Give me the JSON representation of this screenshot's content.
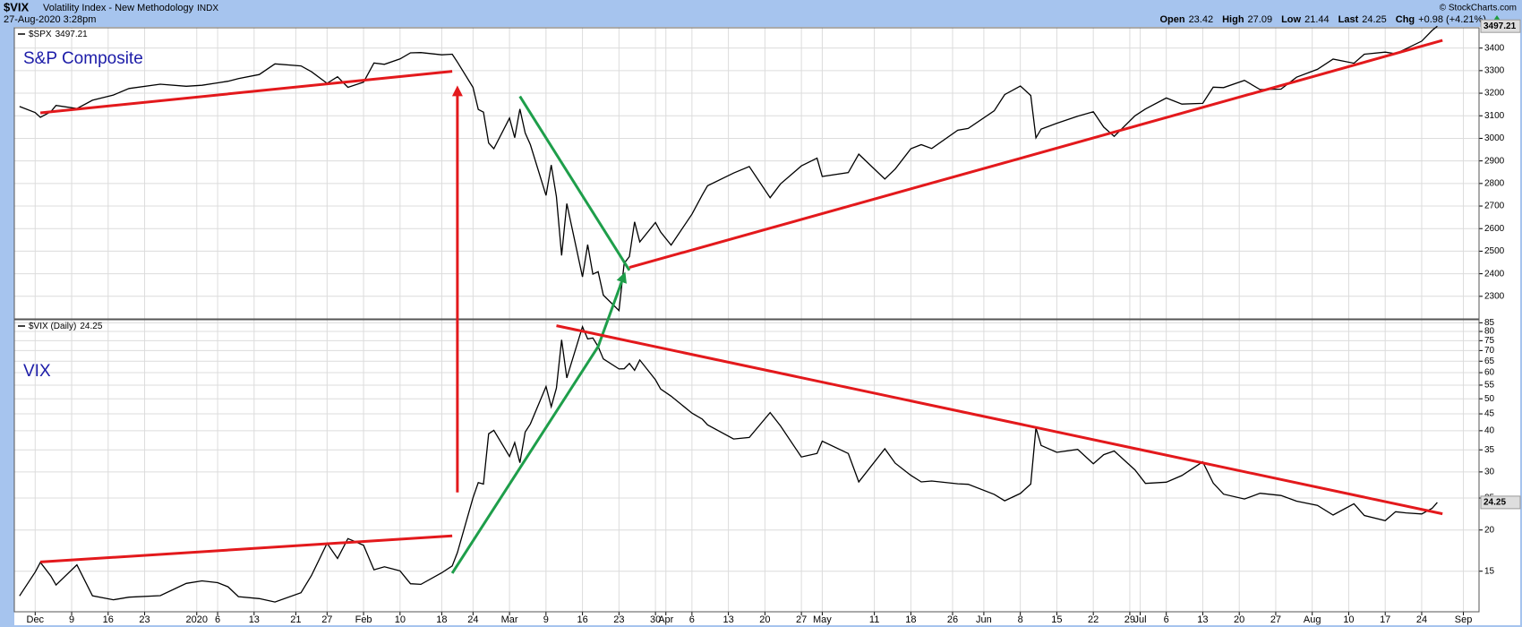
{
  "header": {
    "symbol": "$VIX",
    "name": "Volatility Index - New Methodology",
    "exchange": "INDX",
    "timestamp": "27-Aug-2020 3:28pm",
    "copyright": "© StockCharts.com",
    "quote": [
      {
        "label": "Open",
        "value": 23.42
      },
      {
        "label": "High",
        "value": 27.09
      },
      {
        "label": "Low",
        "value": 21.44
      },
      {
        "label": "Last",
        "value": 24.25
      },
      {
        "label": "Chg",
        "value": "+0.98 (+4.21%)"
      }
    ]
  },
  "chart_data": [
    {
      "type": "line",
      "title": "S&P Composite",
      "title_color": "#1c1ca8",
      "x": [
        "2019-11-29",
        "2019-12-02",
        "2019-12-03",
        "2019-12-05",
        "2019-12-06",
        "2019-12-10",
        "2019-12-13",
        "2019-12-17",
        "2019-12-20",
        "2019-12-26",
        "2019-12-31",
        "2020-01-03",
        "2020-01-06",
        "2020-01-08",
        "2020-01-10",
        "2020-01-14",
        "2020-01-17",
        "2020-01-22",
        "2020-01-24",
        "2020-01-27",
        "2020-01-29",
        "2020-01-31",
        "2020-02-03",
        "2020-02-05",
        "2020-02-07",
        "2020-02-10",
        "2020-02-12",
        "2020-02-14",
        "2020-02-18",
        "2020-02-20",
        "2020-02-21",
        "2020-02-24",
        "2020-02-25",
        "2020-02-26",
        "2020-02-27",
        "2020-02-28",
        "2020-03-02",
        "2020-03-03",
        "2020-03-04",
        "2020-03-05",
        "2020-03-06",
        "2020-03-09",
        "2020-03-10",
        "2020-03-11",
        "2020-03-12",
        "2020-03-13",
        "2020-03-16",
        "2020-03-17",
        "2020-03-18",
        "2020-03-19",
        "2020-03-20",
        "2020-03-23",
        "2020-03-24",
        "2020-03-25",
        "2020-03-26",
        "2020-03-27",
        "2020-03-30",
        "2020-03-31",
        "2020-04-02",
        "2020-04-06",
        "2020-04-08",
        "2020-04-09",
        "2020-04-14",
        "2020-04-17",
        "2020-04-21",
        "2020-04-23",
        "2020-04-27",
        "2020-04-30",
        "2020-05-01",
        "2020-05-06",
        "2020-05-08",
        "2020-05-13",
        "2020-05-15",
        "2020-05-18",
        "2020-05-20",
        "2020-05-22",
        "2020-05-27",
        "2020-05-29",
        "2020-06-03",
        "2020-06-05",
        "2020-06-08",
        "2020-06-10",
        "2020-06-11",
        "2020-06-12",
        "2020-06-15",
        "2020-06-19",
        "2020-06-22",
        "2020-06-24",
        "2020-06-26",
        "2020-06-30",
        "2020-07-02",
        "2020-07-06",
        "2020-07-09",
        "2020-07-13",
        "2020-07-15",
        "2020-07-17",
        "2020-07-21",
        "2020-07-24",
        "2020-07-28",
        "2020-07-31",
        "2020-08-04",
        "2020-08-07",
        "2020-08-11",
        "2020-08-13",
        "2020-08-17",
        "2020-08-19",
        "2020-08-21",
        "2020-08-24",
        "2020-08-26",
        "2020-08-27"
      ],
      "series": [
        {
          "name": "$SPX",
          "color": "#000000",
          "values": [
            3141,
            3114,
            3093,
            3118,
            3146,
            3132,
            3169,
            3192,
            3221,
            3240,
            3231,
            3235,
            3246,
            3253,
            3265,
            3283,
            3330,
            3321,
            3295,
            3244,
            3273,
            3226,
            3249,
            3334,
            3328,
            3352,
            3379,
            3380,
            3370,
            3373,
            3338,
            3226,
            3128,
            3116,
            2979,
            2954,
            3090,
            3003,
            3130,
            3024,
            2972,
            2747,
            2882,
            2741,
            2481,
            2711,
            2386,
            2529,
            2398,
            2409,
            2305,
            2237,
            2447,
            2476,
            2630,
            2541,
            2627,
            2585,
            2527,
            2664,
            2750,
            2790,
            2846,
            2875,
            2737,
            2798,
            2878,
            2912,
            2831,
            2848,
            2930,
            2820,
            2864,
            2954,
            2972,
            2955,
            3036,
            3044,
            3122,
            3194,
            3232,
            3190,
            3002,
            3041,
            3067,
            3098,
            3118,
            3050,
            3009,
            3100,
            3130,
            3179,
            3152,
            3155,
            3227,
            3225,
            3257,
            3216,
            3218,
            3271,
            3306,
            3351,
            3333,
            3373,
            3382,
            3375,
            3397,
            3431,
            3478,
            3497.21
          ]
        }
      ],
      "xlim": [
        "2019-11-28",
        "2020-09-04"
      ],
      "ylim": [
        2200,
        3490
      ],
      "yticks": [
        2300,
        2400,
        2500,
        2600,
        2700,
        2800,
        2900,
        3000,
        3100,
        3200,
        3300,
        3400
      ],
      "log": false,
      "grid": true
    },
    {
      "type": "line",
      "title": "VIX",
      "title_color": "#1c1ca8",
      "x": [
        "2019-11-29",
        "2019-12-02",
        "2019-12-03",
        "2019-12-05",
        "2019-12-06",
        "2019-12-10",
        "2019-12-13",
        "2019-12-17",
        "2019-12-20",
        "2019-12-26",
        "2019-12-31",
        "2020-01-03",
        "2020-01-06",
        "2020-01-08",
        "2020-01-10",
        "2020-01-14",
        "2020-01-17",
        "2020-01-22",
        "2020-01-24",
        "2020-01-27",
        "2020-01-29",
        "2020-01-31",
        "2020-02-03",
        "2020-02-05",
        "2020-02-07",
        "2020-02-10",
        "2020-02-12",
        "2020-02-14",
        "2020-02-18",
        "2020-02-20",
        "2020-02-21",
        "2020-02-24",
        "2020-02-25",
        "2020-02-26",
        "2020-02-27",
        "2020-02-28",
        "2020-03-02",
        "2020-03-03",
        "2020-03-04",
        "2020-03-05",
        "2020-03-06",
        "2020-03-09",
        "2020-03-10",
        "2020-03-11",
        "2020-03-12",
        "2020-03-13",
        "2020-03-16",
        "2020-03-17",
        "2020-03-18",
        "2020-03-19",
        "2020-03-20",
        "2020-03-23",
        "2020-03-24",
        "2020-03-25",
        "2020-03-26",
        "2020-03-27",
        "2020-03-30",
        "2020-03-31",
        "2020-04-02",
        "2020-04-06",
        "2020-04-08",
        "2020-04-09",
        "2020-04-14",
        "2020-04-17",
        "2020-04-21",
        "2020-04-23",
        "2020-04-27",
        "2020-04-30",
        "2020-05-01",
        "2020-05-06",
        "2020-05-08",
        "2020-05-13",
        "2020-05-15",
        "2020-05-18",
        "2020-05-20",
        "2020-05-22",
        "2020-05-27",
        "2020-05-29",
        "2020-06-03",
        "2020-06-05",
        "2020-06-08",
        "2020-06-10",
        "2020-06-11",
        "2020-06-12",
        "2020-06-15",
        "2020-06-19",
        "2020-06-22",
        "2020-06-24",
        "2020-06-26",
        "2020-06-30",
        "2020-07-02",
        "2020-07-06",
        "2020-07-09",
        "2020-07-13",
        "2020-07-15",
        "2020-07-17",
        "2020-07-21",
        "2020-07-24",
        "2020-07-28",
        "2020-07-31",
        "2020-08-04",
        "2020-08-07",
        "2020-08-11",
        "2020-08-13",
        "2020-08-17",
        "2020-08-19",
        "2020-08-21",
        "2020-08-24",
        "2020-08-26",
        "2020-08-27"
      ],
      "series": [
        {
          "name": "$VIX (Daily)",
          "color": "#000000",
          "values": [
            12.62,
            14.91,
            15.96,
            14.5,
            13.62,
            15.68,
            12.63,
            12.29,
            12.51,
            12.65,
            13.78,
            14.02,
            13.85,
            13.45,
            12.56,
            12.39,
            12.1,
            12.91,
            14.56,
            18.23,
            16.39,
            18.84,
            17.97,
            15.15,
            15.47,
            15.04,
            13.74,
            13.68,
            14.83,
            15.56,
            17.08,
            25.03,
            27.85,
            27.56,
            39.16,
            40.11,
            33.42,
            36.82,
            31.99,
            39.62,
            41.94,
            54.46,
            47.3,
            53.9,
            75.47,
            57.83,
            82.69,
            75.91,
            76.45,
            72.0,
            66.04,
            61.59,
            61.67,
            63.95,
            61.0,
            65.54,
            57.08,
            53.54,
            50.91,
            45.24,
            43.35,
            41.67,
            37.76,
            38.15,
            45.41,
            41.38,
            33.29,
            34.15,
            37.19,
            34.12,
            27.98,
            35.28,
            31.89,
            29.3,
            27.99,
            28.16,
            27.62,
            27.51,
            25.66,
            24.52,
            25.81,
            27.57,
            40.79,
            36.09,
            34.4,
            35.12,
            31.77,
            33.84,
            34.73,
            30.43,
            27.68,
            27.94,
            29.26,
            32.19,
            27.76,
            25.68,
            24.84,
            25.84,
            25.44,
            24.46,
            23.76,
            22.21,
            24.03,
            22.13,
            21.35,
            22.72,
            22.54,
            22.37,
            23.27,
            24.25
          ]
        }
      ],
      "xlim": [
        "2019-11-28",
        "2020-09-04"
      ],
      "ylim": [
        11.3,
        86.8
      ],
      "yticks": [
        15,
        20,
        25,
        30,
        35,
        40,
        45,
        50,
        55,
        60,
        65,
        70,
        75,
        80,
        85
      ],
      "log": true,
      "grid": true,
      "xticks": [
        {
          "value": "2019-12-02",
          "label": "Dec"
        },
        {
          "value": "2019-12-09",
          "label": "9"
        },
        {
          "value": "2019-12-16",
          "label": "16"
        },
        {
          "value": "2019-12-23",
          "label": "23"
        },
        {
          "value": "2020-01-02",
          "label": "2020"
        },
        {
          "value": "2020-01-06",
          "label": "6"
        },
        {
          "value": "2020-01-13",
          "label": "13"
        },
        {
          "value": "2020-01-21",
          "label": "21"
        },
        {
          "value": "2020-01-27",
          "label": "27"
        },
        {
          "value": "2020-02-03",
          "label": "Feb"
        },
        {
          "value": "2020-02-10",
          "label": "10"
        },
        {
          "value": "2020-02-18",
          "label": "18"
        },
        {
          "value": "2020-02-24",
          "label": "24"
        },
        {
          "value": "2020-03-02",
          "label": "Mar"
        },
        {
          "value": "2020-03-09",
          "label": "9"
        },
        {
          "value": "2020-03-16",
          "label": "16"
        },
        {
          "value": "2020-03-23",
          "label": "23"
        },
        {
          "value": "2020-03-30",
          "label": "30"
        },
        {
          "value": "2020-04-01",
          "label": "Apr"
        },
        {
          "value": "2020-04-06",
          "label": "6"
        },
        {
          "value": "2020-04-13",
          "label": "13"
        },
        {
          "value": "2020-04-20",
          "label": "20"
        },
        {
          "value": "2020-04-27",
          "label": "27"
        },
        {
          "value": "2020-05-01",
          "label": "May"
        },
        {
          "value": "2020-05-11",
          "label": "11"
        },
        {
          "value": "2020-05-18",
          "label": "18"
        },
        {
          "value": "2020-05-26",
          "label": "26"
        },
        {
          "value": "2020-06-01",
          "label": "Jun"
        },
        {
          "value": "2020-06-08",
          "label": "8"
        },
        {
          "value": "2020-06-15",
          "label": "15"
        },
        {
          "value": "2020-06-22",
          "label": "22"
        },
        {
          "value": "2020-06-29",
          "label": "29"
        },
        {
          "value": "2020-07-01",
          "label": "Jul"
        },
        {
          "value": "2020-07-06",
          "label": "6"
        },
        {
          "value": "2020-07-13",
          "label": "13"
        },
        {
          "value": "2020-07-20",
          "label": "20"
        },
        {
          "value": "2020-07-27",
          "label": "27"
        },
        {
          "value": "2020-08-03",
          "label": "Aug"
        },
        {
          "value": "2020-08-10",
          "label": "10"
        },
        {
          "value": "2020-08-17",
          "label": "17"
        },
        {
          "value": "2020-08-24",
          "label": "24"
        },
        {
          "value": "2020-09-01",
          "label": "Sep"
        }
      ]
    }
  ],
  "annotations": [
    {
      "color": "#e3191c",
      "arrow": false,
      "points": [
        {
          "pane": 0,
          "x": "2019-12-03",
          "y": 3113
        },
        {
          "pane": 0,
          "x": "2020-02-20",
          "y": 3297
        }
      ]
    },
    {
      "color": "#e3191c",
      "arrow": true,
      "points": [
        {
          "pane": 1,
          "x": "2020-02-21",
          "y": 26
        },
        {
          "pane": 0,
          "x": "2020-02-21",
          "y": 3220
        }
      ]
    },
    {
      "color": "#1e9e4a",
      "arrow": false,
      "points": [
        {
          "pane": 0,
          "x": "2020-03-04",
          "y": 3186
        },
        {
          "pane": 0,
          "x": "2020-03-25",
          "y": 2415
        }
      ]
    },
    {
      "color": "#e3191c",
      "arrow": false,
      "points": [
        {
          "pane": 0,
          "x": "2020-03-25",
          "y": 2428
        },
        {
          "pane": 0,
          "x": "2020-08-28",
          "y": 3434
        }
      ]
    },
    {
      "color": "#1e9e4a",
      "arrow": true,
      "points": [
        {
          "pane": 1,
          "x": "2020-02-20",
          "y": 14.8
        },
        {
          "pane": 1,
          "x": "2020-03-19",
          "y": 72
        },
        {
          "pane": 0,
          "x": "2020-03-24",
          "y": 2395
        }
      ]
    },
    {
      "color": "#e3191c",
      "arrow": false,
      "points": [
        {
          "pane": 1,
          "x": "2020-03-11",
          "y": 83.3
        },
        {
          "pane": 1,
          "x": "2020-08-28",
          "y": 22.4
        }
      ]
    },
    {
      "color": "#e3191c",
      "arrow": false,
      "points": [
        {
          "pane": 1,
          "x": "2019-12-03",
          "y": 16.0
        },
        {
          "pane": 1,
          "x": "2020-02-20",
          "y": 19.2
        }
      ]
    }
  ]
}
